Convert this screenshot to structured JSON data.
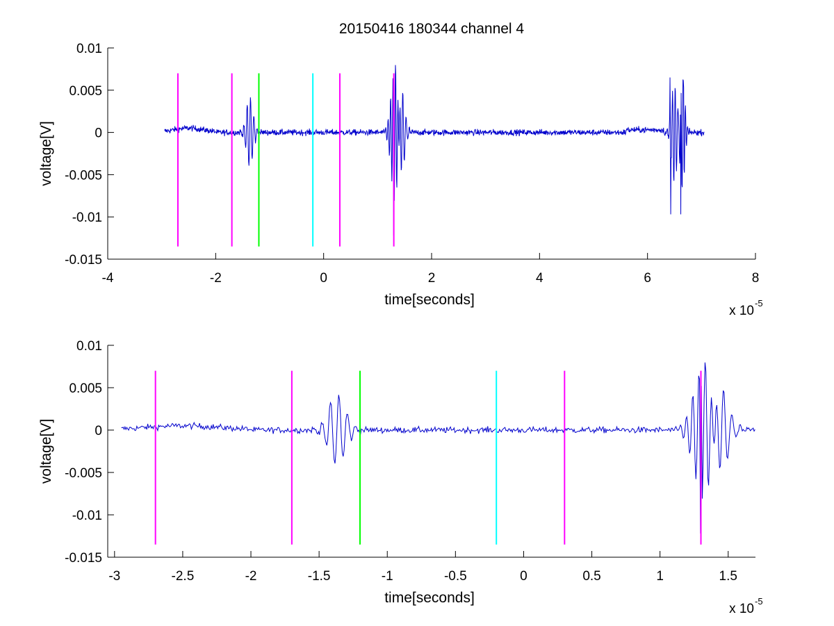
{
  "title": "20150416 180344 channel 4",
  "colors": {
    "signal": "#0000cc",
    "marker_magenta": "#ff00ff",
    "marker_green": "#00ff00",
    "marker_cyan": "#00ffff",
    "axis": "#000000",
    "background": "#ffffff"
  },
  "chart_data": [
    {
      "type": "line",
      "title": "20150416 180344 channel 4",
      "xlabel": "time[seconds]",
      "ylabel": "voltage[V]",
      "x_exponent_label": "x 10",
      "x_exponent": "-5",
      "xlim": [
        -4,
        8
      ],
      "ylim": [
        -0.015,
        0.01
      ],
      "xticks": [
        "-4",
        "-2",
        "0",
        "2",
        "4",
        "6",
        "8"
      ],
      "yticks": [
        "0.01",
        "0.005",
        "0",
        "-0.005",
        "-0.01",
        "-0.015"
      ],
      "grid": false,
      "signal_range_x": [
        -2.95,
        7.05
      ],
      "markers": [
        {
          "x": -2.7,
          "color": "magenta",
          "y_range": [
            -0.0135,
            0.007
          ]
        },
        {
          "x": -1.7,
          "color": "magenta",
          "y_range": [
            -0.0135,
            0.007
          ]
        },
        {
          "x": -1.2,
          "color": "green",
          "y_range": [
            -0.0135,
            0.007
          ]
        },
        {
          "x": -0.2,
          "color": "cyan",
          "y_range": [
            -0.0135,
            0.007
          ]
        },
        {
          "x": 0.3,
          "color": "magenta",
          "y_range": [
            -0.0135,
            0.007
          ]
        },
        {
          "x": 1.3,
          "color": "magenta",
          "y_range": [
            -0.0135,
            0.007
          ]
        }
      ]
    },
    {
      "type": "line",
      "xlabel": "time[seconds]",
      "ylabel": "voltage[V]",
      "x_exponent_label": "x 10",
      "x_exponent": "-5",
      "xlim": [
        -3.05,
        1.7
      ],
      "ylim": [
        -0.015,
        0.01
      ],
      "xticks": [
        "-3",
        "-2.5",
        "-2",
        "-1.5",
        "-1",
        "-0.5",
        "0",
        "0.5",
        "1",
        "1.5"
      ],
      "yticks": [
        "0.01",
        "0.005",
        "0",
        "-0.005",
        "-0.01",
        "-0.015"
      ],
      "grid": false,
      "signal_range_x": [
        -2.95,
        1.7
      ],
      "markers": [
        {
          "x": -2.7,
          "color": "magenta",
          "y_range": [
            -0.0135,
            0.007
          ]
        },
        {
          "x": -1.7,
          "color": "magenta",
          "y_range": [
            -0.0135,
            0.007
          ]
        },
        {
          "x": -1.2,
          "color": "green",
          "y_range": [
            -0.0135,
            0.007
          ]
        },
        {
          "x": -0.2,
          "color": "cyan",
          "y_range": [
            -0.0135,
            0.007
          ]
        },
        {
          "x": 0.3,
          "color": "magenta",
          "y_range": [
            -0.0135,
            0.007
          ]
        },
        {
          "x": 1.3,
          "color": "magenta",
          "y_range": [
            -0.0135,
            0.007
          ]
        }
      ]
    }
  ]
}
